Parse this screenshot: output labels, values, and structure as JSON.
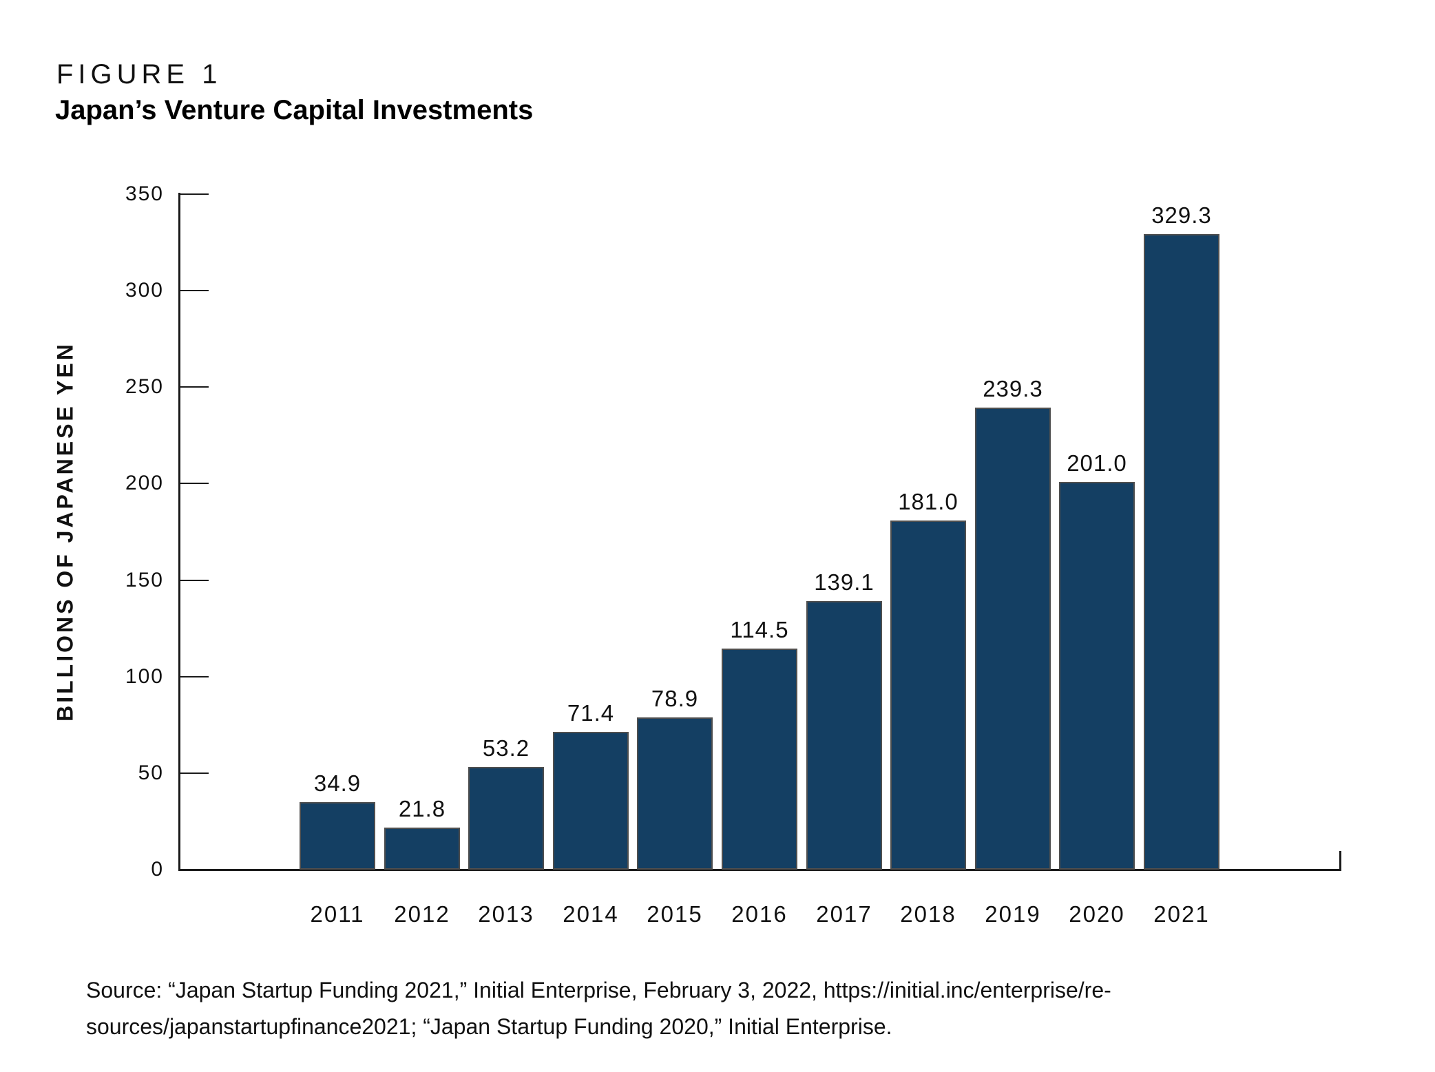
{
  "figure": {
    "label": "FIGURE 1",
    "title": "Japan’s Venture Capital Investments"
  },
  "chart_data": {
    "type": "bar",
    "title": "Japan’s Venture Capital Investments",
    "categories": [
      "2011",
      "2012",
      "2013",
      "2014",
      "2015",
      "2016",
      "2017",
      "2018",
      "2019",
      "2020",
      "2021"
    ],
    "values": [
      34.9,
      21.8,
      53.2,
      71.4,
      78.9,
      114.5,
      139.1,
      181.0,
      239.3,
      201.0,
      329.3
    ],
    "value_labels": [
      "34.9",
      "21.8",
      "53.2",
      "71.4",
      "78.9",
      "114.5",
      "139.1",
      "181.0",
      "239.3",
      "201.0",
      "329.3"
    ],
    "xlabel": "",
    "ylabel": "BILLIONS OF JAPANESE YEN",
    "yticks": [
      0,
      50,
      100,
      150,
      200,
      250,
      300,
      350
    ],
    "ylim": [
      0,
      350
    ],
    "grid": false,
    "legend_position": "none",
    "bar_color": "#143f63",
    "bar_edge_color": "#4f4f4f",
    "axis_color": "#1a1a1a"
  },
  "source": {
    "lines": [
      "Source: “Japan Startup Funding 2021,” Initial Enterprise, February 3, 2022, https://initial.inc/enterprise/re-",
      "sources/japanstartupfinance2021; “Japan Startup Funding 2020,” Initial Enterprise."
    ]
  }
}
